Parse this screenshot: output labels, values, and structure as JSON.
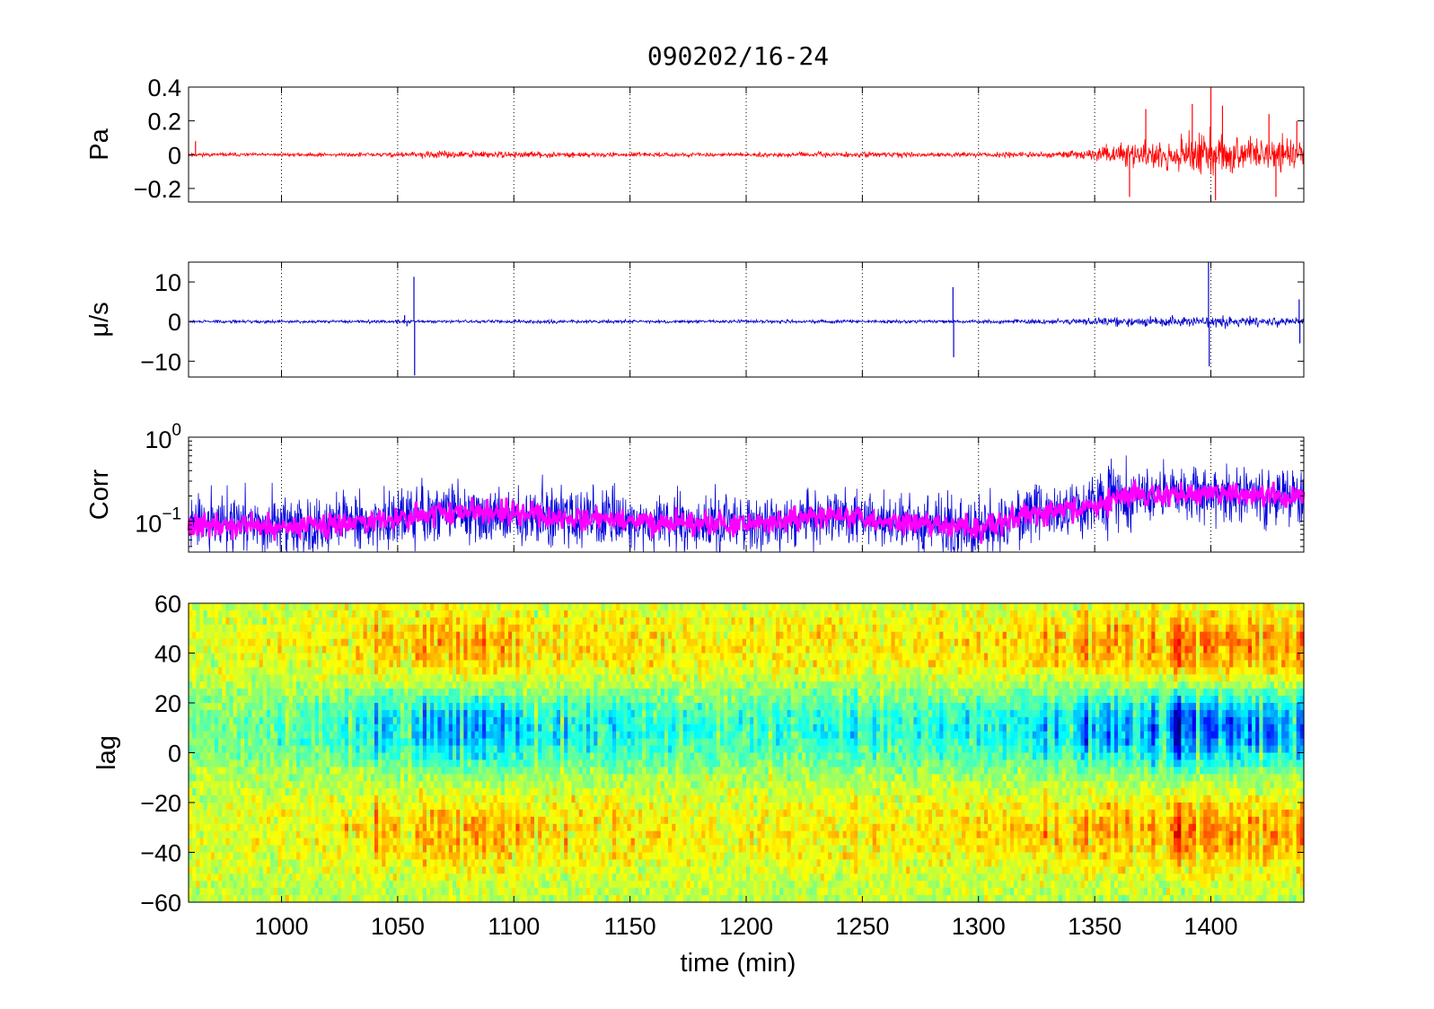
{
  "figure": {
    "title": "090202/16-24",
    "xlabel": "time (min)"
  },
  "colors": {
    "pressure": "#ff0000",
    "velocity": "#0000cc",
    "corr_raw": "#0000dd",
    "corr_smooth": "#ff00ff",
    "grid": "#000000"
  },
  "chart_data": [
    {
      "type": "line",
      "panel": "pressure",
      "ylabel": "Pa",
      "xlim": [
        960,
        1440
      ],
      "ylim": [
        -0.28,
        0.4
      ],
      "yticks": [
        0.4,
        0.2,
        0,
        -0.2
      ],
      "ytick_labels": [
        "0.4",
        "0.2",
        "0",
        "−0.2"
      ],
      "xgrid": [
        1000,
        1050,
        1100,
        1150,
        1200,
        1250,
        1300,
        1350,
        1400
      ],
      "series": [
        {
          "envelope_x": [
            960,
            1000,
            1040,
            1080,
            1100,
            1150,
            1200,
            1250,
            1300,
            1330,
            1350,
            1360,
            1380,
            1400,
            1420,
            1440
          ],
          "envelope_amp": [
            0.01,
            0.008,
            0.012,
            0.02,
            0.016,
            0.01,
            0.01,
            0.014,
            0.012,
            0.015,
            0.03,
            0.06,
            0.08,
            0.12,
            0.09,
            0.08
          ],
          "spikes": [
            {
              "x": 963,
              "y": 0.08
            },
            {
              "x": 1365,
              "y": -0.25
            },
            {
              "x": 1372,
              "y": 0.27
            },
            {
              "x": 1392,
              "y": 0.3
            },
            {
              "x": 1400,
              "y": 0.4
            },
            {
              "x": 1402,
              "y": -0.27
            },
            {
              "x": 1405,
              "y": 0.29
            },
            {
              "x": 1425,
              "y": 0.24
            },
            {
              "x": 1428,
              "y": -0.25
            },
            {
              "x": 1437,
              "y": 0.2
            }
          ]
        }
      ]
    },
    {
      "type": "line",
      "panel": "velocity",
      "ylabel": "μ/s",
      "xlim": [
        960,
        1440
      ],
      "ylim": [
        -14,
        15
      ],
      "yticks": [
        10,
        0,
        -10
      ],
      "ytick_labels": [
        "10",
        "0",
        "−10"
      ],
      "xgrid": [
        1000,
        1050,
        1100,
        1150,
        1200,
        1250,
        1300,
        1350,
        1400
      ],
      "series": [
        {
          "envelope_x": [
            960,
            1050,
            1100,
            1200,
            1300,
            1340,
            1360,
            1400,
            1440
          ],
          "envelope_amp": [
            0.3,
            0.35,
            0.4,
            0.35,
            0.4,
            0.6,
            1.0,
            1.2,
            0.9
          ],
          "spikes": [
            {
              "x": 1053,
              "y": 1.6
            },
            {
              "x": 1054,
              "y": -1.2
            },
            {
              "x": 1057,
              "y": 11.3
            },
            {
              "x": 1057.3,
              "y": -13.6
            },
            {
              "x": 1289,
              "y": 8.7
            },
            {
              "x": 1289.3,
              "y": -9.0
            },
            {
              "x": 1399,
              "y": 15.0
            },
            {
              "x": 1399.3,
              "y": -11.3
            },
            {
              "x": 1438,
              "y": 5.6
            },
            {
              "x": 1438.3,
              "y": -5.5
            }
          ]
        }
      ]
    },
    {
      "type": "line",
      "panel": "correlation",
      "ylabel": "Corr",
      "yscale": "log",
      "xlim": [
        960,
        1440
      ],
      "ylim": [
        0.043,
        1.0
      ],
      "yticks": [
        1.0,
        0.1
      ],
      "ytick_labels": [
        "10^0",
        "10^−1"
      ],
      "xgrid": [
        1000,
        1050,
        1100,
        1150,
        1200,
        1250,
        1300,
        1350,
        1400
      ],
      "series": [
        {
          "style": "raw",
          "baseline_x": [
            960,
            1000,
            1040,
            1080,
            1100,
            1150,
            1200,
            1240,
            1260,
            1300,
            1320,
            1350,
            1360,
            1400,
            1440
          ],
          "baseline_y": [
            0.09,
            0.085,
            0.1,
            0.13,
            0.12,
            0.1,
            0.09,
            0.12,
            0.1,
            0.08,
            0.12,
            0.15,
            0.2,
            0.21,
            0.19
          ]
        },
        {
          "style": "smoothed",
          "baseline_x": [
            960,
            1000,
            1040,
            1080,
            1100,
            1150,
            1200,
            1240,
            1260,
            1300,
            1320,
            1350,
            1360,
            1400,
            1440
          ],
          "baseline_y": [
            0.09,
            0.085,
            0.1,
            0.13,
            0.12,
            0.1,
            0.09,
            0.12,
            0.1,
            0.08,
            0.12,
            0.15,
            0.2,
            0.21,
            0.19
          ]
        }
      ]
    },
    {
      "type": "heatmap",
      "panel": "lag",
      "ylabel": "lag",
      "xlim": [
        960,
        1440
      ],
      "ylim": [
        -60,
        60
      ],
      "yticks": [
        60,
        40,
        20,
        0,
        -20,
        -40,
        -60
      ],
      "ytick_labels": [
        "60",
        "40",
        "20",
        "0",
        "−20",
        "−40",
        "−60"
      ],
      "xticks": [
        1000,
        1050,
        1100,
        1150,
        1200,
        1250,
        1300,
        1350,
        1400
      ],
      "xtick_labels": [
        "1000",
        "1050",
        "1100",
        "1150",
        "1200",
        "1250",
        "1300",
        "1350",
        "1400"
      ],
      "features": {
        "negative_band_center_lag": 10,
        "negative_band_halfwidth": 16,
        "strength_x": [
          960,
          1000,
          1030,
          1070,
          1090,
          1110,
          1150,
          1200,
          1240,
          1260,
          1300,
          1340,
          1360,
          1400,
          1440
        ],
        "strength_v": [
          0.2,
          0.3,
          0.5,
          0.7,
          0.9,
          0.7,
          0.5,
          0.4,
          0.5,
          0.45,
          0.5,
          0.7,
          1.0,
          1.05,
          0.95
        ]
      }
    }
  ]
}
